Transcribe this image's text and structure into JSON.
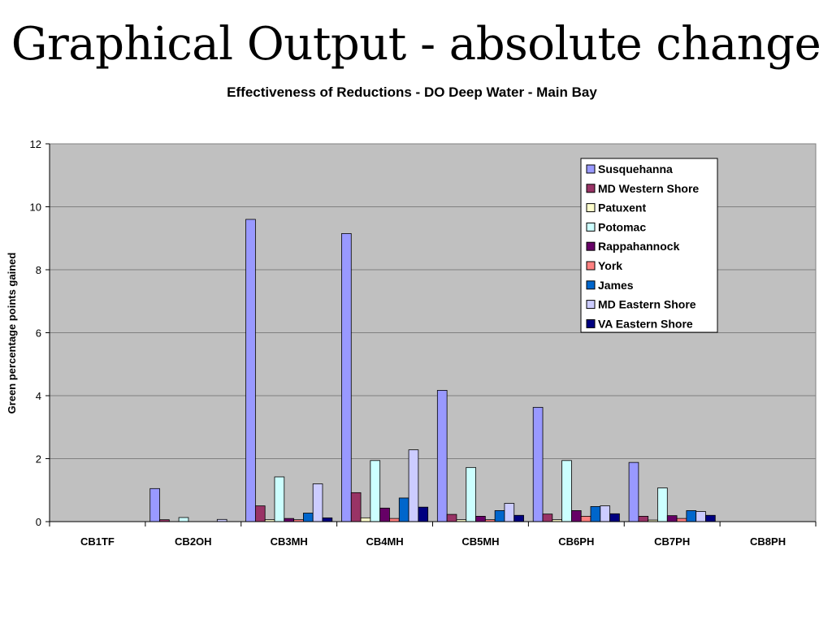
{
  "slide": {
    "title": "Graphical Output - absolute change"
  },
  "chart_data": {
    "type": "bar",
    "title": "Effectiveness of Reductions - DO Deep Water - Main Bay",
    "xlabel": "",
    "ylabel": "Green percentage points gained",
    "ylim": [
      0,
      12
    ],
    "yticks": [
      0,
      2,
      4,
      6,
      8,
      10,
      12
    ],
    "grid": true,
    "legend_position": "top-right",
    "plot_background": "#c0c0c0",
    "categories": [
      "CB1TF",
      "CB2OH",
      "CB3MH",
      "CB4MH",
      "CB5MH",
      "CB6PH",
      "CB7PH",
      "CB8PH"
    ],
    "series": [
      {
        "name": "Susquehanna",
        "color": "#9999ff",
        "values": [
          0,
          1.05,
          9.6,
          9.15,
          4.17,
          3.63,
          1.88,
          0
        ]
      },
      {
        "name": "MD Western Shore",
        "color": "#993366",
        "values": [
          0,
          0.06,
          0.5,
          0.92,
          0.23,
          0.24,
          0.17,
          0
        ]
      },
      {
        "name": "Patuxent",
        "color": "#ffffcc",
        "values": [
          0,
          0,
          0.06,
          0.12,
          0.06,
          0.06,
          0.05,
          0
        ]
      },
      {
        "name": "Potomac",
        "color": "#ccffff",
        "values": [
          0,
          0.13,
          1.42,
          1.94,
          1.72,
          1.94,
          1.07,
          0
        ]
      },
      {
        "name": "Rappahannock",
        "color": "#660066",
        "values": [
          0,
          0,
          0.1,
          0.43,
          0.17,
          0.35,
          0.19,
          0
        ]
      },
      {
        "name": "York",
        "color": "#ff8080",
        "values": [
          0,
          0,
          0.06,
          0.1,
          0.06,
          0.17,
          0.1,
          0
        ]
      },
      {
        "name": "James",
        "color": "#0066cc",
        "values": [
          0,
          0,
          0.27,
          0.75,
          0.35,
          0.48,
          0.35,
          0
        ]
      },
      {
        "name": "MD Eastern Shore",
        "color": "#ccccff",
        "values": [
          0,
          0.07,
          1.2,
          2.28,
          0.58,
          0.5,
          0.32,
          0
        ]
      },
      {
        "name": "VA Eastern Shore",
        "color": "#000080",
        "values": [
          0,
          0,
          0.12,
          0.46,
          0.2,
          0.25,
          0.2,
          0
        ]
      }
    ]
  }
}
